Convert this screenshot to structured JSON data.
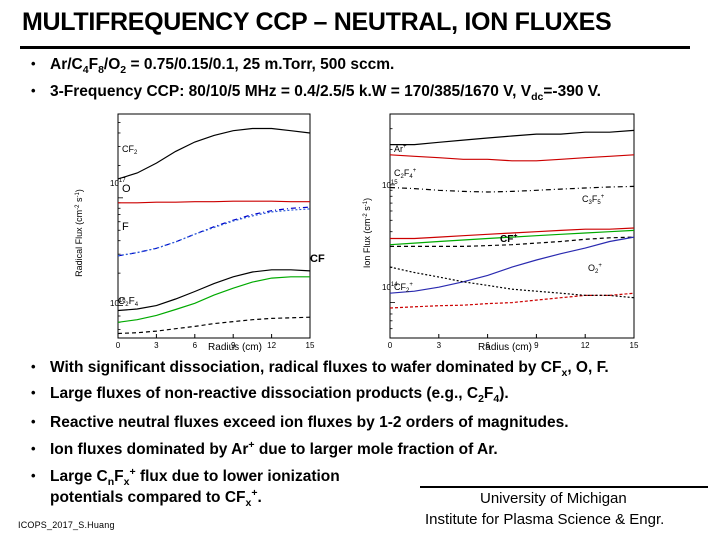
{
  "slide": {
    "title": "MULTIFREQUENCY CCP – NEUTRAL, ION FLUXES",
    "conditions": [
      {
        "p1": "Ar/C",
        "s1": "4",
        "p2": "F",
        "s2": "8",
        "p3": "/O",
        "s3": "2",
        "p4": " = 0.75/0.15/0.1, 25 m.Torr, 500 sccm."
      },
      {
        "p1": "3-Frequency CCP: 80/10/5 MHz = 0.4/2.5/5 k.W = 170/385/1670 V, V",
        "s1": "dc",
        "p2": "=-390 V."
      }
    ],
    "findings": [
      {
        "p1": "With significant dissociation, radical fluxes to wafer dominated by CF",
        "s1": "x",
        "p2": ", O, F."
      },
      {
        "p1": "Large fluxes of non-reactive dissociation products (e.g., C",
        "s1": "2",
        "p2": "F",
        "s2": "4",
        "p3": ")."
      },
      {
        "p1": "Reactive neutral fluxes exceed ion fluxes by 1-2 orders of magnitudes."
      },
      {
        "p1": "Ion fluxes dominated by Ar",
        "sup1": "+",
        "p2": " due to larger mole fraction of Ar."
      },
      {
        "p1": "Large C",
        "s1": "n",
        "p2": "F",
        "s2": "x",
        "sup1": "+",
        "p3": " flux due to lower ionization"
      },
      {
        "p1": "potentials compared to CF",
        "s1": "x",
        "sup1": "+",
        "p2": "."
      }
    ],
    "footer": {
      "affil1": "University of Michigan",
      "affil2": "Institute for Plasma Science & Engr.",
      "author": "ICOPS_2017_S.Huang"
    }
  },
  "chart_data": [
    {
      "type": "line",
      "xlabel": "Radius (cm)",
      "ylabel_text": "Radical Flux (cm",
      "ylabel_sup": "-2",
      "ylabel_end": " s",
      "ylabel_sup2": "-1",
      "ylabel_close": ")",
      "log_y": true,
      "xlim": [
        0,
        15
      ],
      "ylim": [
        5000000000000000.0,
        6e+17
      ],
      "xticks": [
        0,
        3,
        6,
        9,
        12,
        15
      ],
      "yticks": [
        {
          "value": 1e+17,
          "base": "10",
          "exp": "17"
        },
        {
          "value": 1e+16,
          "base": "10",
          "exp": "16"
        }
      ],
      "x": [
        0,
        1.5,
        3,
        4.5,
        6,
        7.5,
        9,
        10.5,
        12,
        13.5,
        15
      ],
      "series": [
        {
          "name": "CF",
          "sub": "2",
          "color": "#000000",
          "dash": "",
          "values": [
            1.5e+17,
            1.7e+17,
            2.1e+17,
            2.7e+17,
            3.3e+17,
            3.8e+17,
            4.2e+17,
            4.4e+17,
            4.4e+17,
            4.2e+17,
            4e+17
          ]
        },
        {
          "name": "O",
          "sub": "",
          "color": "#cc0000",
          "dash": "",
          "values": [
            9e+16,
            9e+16,
            9.1e+16,
            9.1e+16,
            9.2e+16,
            9.2e+16,
            9.3e+16,
            9.3e+16,
            9.3e+16,
            9.2e+16,
            9.2e+16
          ]
        },
        {
          "name": "F",
          "sub": "",
          "color": "#0000cc",
          "dash": "5 3 1 3",
          "values": [
            2.9e+16,
            3.1e+16,
            3.4e+16,
            3.9e+16,
            4.6e+16,
            5.4e+16,
            6.2e+16,
            7e+16,
            7.6e+16,
            8e+16,
            8.2e+16
          ]
        },
        {
          "name": "",
          "sub": "",
          "color": "#2a5bd7",
          "dash": "2 2",
          "values": [
            2.9e+16,
            3.1e+16,
            3.4e+16,
            3.9e+16,
            4.6e+16,
            5.3e+16,
            6.1e+16,
            6.8e+16,
            7.4e+16,
            7.7e+16,
            7.9e+16
          ]
        },
        {
          "name": "CF",
          "sub": "",
          "color": "#000000",
          "dash": "",
          "values": [
            9000000000000000.0,
            9300000000000000.0,
            1e+16,
            1.15e+16,
            1.35e+16,
            1.6e+16,
            1.85e+16,
            2.05e+16,
            2.15e+16,
            2.15e+16,
            2.1e+16
          ]
        },
        {
          "name": "",
          "sub": "",
          "color": "#00aa00",
          "dash": "",
          "values": [
            7000000000000000.0,
            7400000000000000.0,
            8100000000000000.0,
            9200000000000000.0,
            1.05e+16,
            1.25e+16,
            1.45e+16,
            1.65e+16,
            1.8e+16,
            1.85e+16,
            1.85e+16
          ]
        },
        {
          "name": "C",
          "sub": "2",
          "name2": "F",
          "sub2": "4",
          "color": "#000000",
          "dash": "4 3",
          "values": [
            5500000000000000.0,
            5600000000000000.0,
            5800000000000000.0,
            6100000000000000.0,
            6400000000000000.0,
            6800000000000000.0,
            7100000000000000.0,
            7400000000000000.0,
            7600000000000000.0,
            7700000000000000.0,
            7800000000000000.0
          ]
        }
      ]
    },
    {
      "type": "line",
      "xlabel": "Radius (cm)",
      "ylabel_text": "Ion Flux (cm",
      "ylabel_sup": "-2",
      "ylabel_end": " s",
      "ylabel_sup2": "-1",
      "ylabel_close": ")",
      "log_y": true,
      "xlim": [
        0,
        15
      ],
      "ylim": [
        50000000000000.0,
        4000000000000000.0
      ],
      "xticks": [
        0,
        3,
        6,
        9,
        12,
        15
      ],
      "yticks": [
        {
          "value": 1000000000000000.0,
          "base": "10",
          "exp": "15"
        },
        {
          "value": 100000000000000.0,
          "base": "10",
          "exp": "14"
        }
      ],
      "x": [
        0,
        1.5,
        3,
        4.5,
        6,
        7.5,
        9,
        10.5,
        12,
        13.5,
        15
      ],
      "series": [
        {
          "name": "Ar",
          "sup": "+",
          "color": "#000000",
          "dash": "",
          "values": [
            2200000000000000.0,
            2200000000000000.0,
            2300000000000000.0,
            2400000000000000.0,
            2500000000000000.0,
            2600000000000000.0,
            2700000000000000.0,
            2700000000000000.0,
            2800000000000000.0,
            2800000000000000.0,
            2900000000000000.0
          ]
        },
        {
          "name": "C",
          "sub": "2",
          "name2": "F",
          "sub2": "4",
          "sup": "+",
          "color": "#cc0000",
          "dash": "",
          "values": [
            1800000000000000.0,
            1750000000000000.0,
            1700000000000000.0,
            1650000000000000.0,
            1650000000000000.0,
            1600000000000000.0,
            1600000000000000.0,
            1650000000000000.0,
            1700000000000000.0,
            1750000000000000.0,
            1800000000000000.0
          ]
        },
        {
          "name": "C",
          "sub": "3",
          "name2": "F",
          "sub2": "5",
          "sup": "+",
          "color": "#000000",
          "dash": "5 3 1 3",
          "values": [
            950000000000000.0,
            930000000000000.0,
            900000000000000.0,
            880000000000000.0,
            870000000000000.0,
            880000000000000.0,
            900000000000000.0,
            920000000000000.0,
            940000000000000.0,
            960000000000000.0,
            970000000000000.0
          ]
        },
        {
          "name": "",
          "color": "#cc0000",
          "dash": "",
          "values": [
            350000000000000.0,
            350000000000000.0,
            360000000000000.0,
            370000000000000.0,
            380000000000000.0,
            390000000000000.0,
            400000000000000.0,
            410000000000000.0,
            420000000000000.0,
            420000000000000.0,
            430000000000000.0
          ]
        },
        {
          "name": "",
          "color": "#00aa00",
          "dash": "",
          "values": [
            310000000000000.0,
            320000000000000.0,
            330000000000000.0,
            340000000000000.0,
            350000000000000.0,
            360000000000000.0,
            370000000000000.0,
            380000000000000.0,
            390000000000000.0,
            400000000000000.0,
            410000000000000.0
          ]
        },
        {
          "name": "CF",
          "sup": "+",
          "color": "#000000",
          "dash": "4 3",
          "values": [
            300000000000000.0,
            300000000000000.0,
            300000000000000.0,
            300000000000000.0,
            305000000000000.0,
            310000000000000.0,
            320000000000000.0,
            330000000000000.0,
            345000000000000.0,
            355000000000000.0,
            360000000000000.0
          ]
        },
        {
          "name": "",
          "color": "#2a2ab0",
          "dash": "",
          "values": [
            120000000000000.0,
            125000000000000.0,
            135000000000000.0,
            150000000000000.0,
            170000000000000.0,
            200000000000000.0,
            230000000000000.0,
            260000000000000.0,
            290000000000000.0,
            330000000000000.0,
            360000000000000.0
          ]
        },
        {
          "name": "CF",
          "sub": "2",
          "sup": "+",
          "color": "#cc0000",
          "dash": "3 2",
          "values": [
            90000000000000.0,
            92000000000000.0,
            94000000000000.0,
            95000000000000.0,
            98000000000000.0,
            100000000000000.0,
            105000000000000.0,
            110000000000000.0,
            115000000000000.0,
            115000000000000.0,
            120000000000000.0
          ]
        },
        {
          "name": "O",
          "sub": "2",
          "sup": "+",
          "color": "#000000",
          "dash": "2 2",
          "values": [
            200000000000000.0,
            180000000000000.0,
            165000000000000.0,
            150000000000000.0,
            140000000000000.0,
            130000000000000.0,
            125000000000000.0,
            120000000000000.0,
            115000000000000.0,
            115000000000000.0,
            110000000000000.0
          ]
        }
      ]
    }
  ]
}
